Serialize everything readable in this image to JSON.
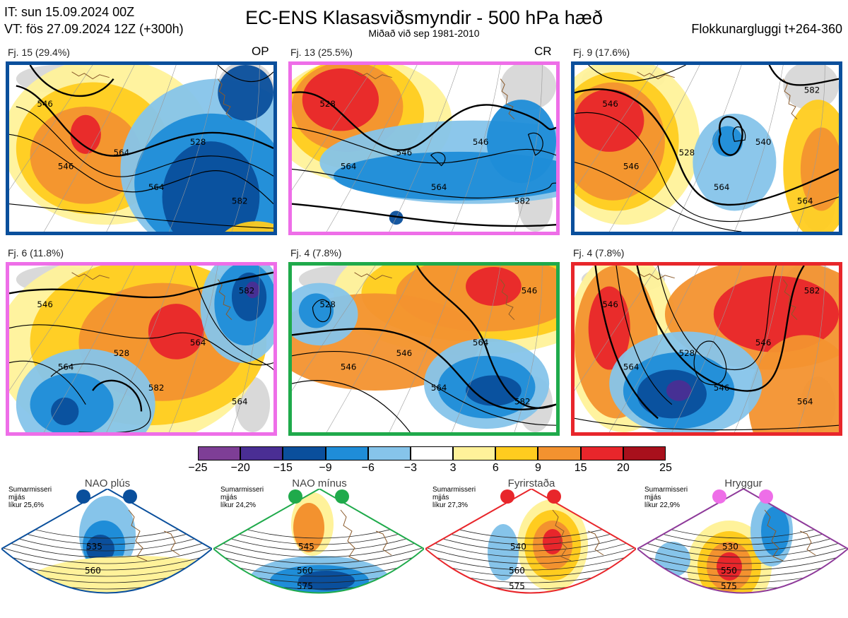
{
  "header": {
    "it_line": "IT: sun 15.09.2024 00Z",
    "vt_line": "VT: fös 27.09.2024 12Z  (+300h)",
    "title": "EC-ENS Klasasviðsmyndir - 500 hPa hæð",
    "subtitle": "Miðað við sep 1981-2010",
    "window": "Flokkunargluggi t+264-360"
  },
  "clusters": [
    {
      "label": "Fj. 15 (29.4%)",
      "tag": "OP",
      "border": "#0a4f9c",
      "contours": [
        "546",
        "564",
        "528",
        "546",
        "564",
        "582"
      ]
    },
    {
      "label": "Fj. 13 (25.5%)",
      "tag": "CR",
      "border": "#ee6ee8",
      "contours": [
        "528",
        "546",
        "546",
        "564",
        "564",
        "582"
      ]
    },
    {
      "label": "Fj. 9 (17.6%)",
      "tag": "",
      "border": "#0a4f9c",
      "contours": [
        "546",
        "528",
        "540",
        "546",
        "564",
        "564",
        "582"
      ]
    },
    {
      "label": "Fj. 6 (11.8%)",
      "tag": "",
      "border": "#ee6ee8",
      "contours": [
        "546",
        "528",
        "564",
        "564",
        "582",
        "564",
        "582"
      ]
    },
    {
      "label": "Fj. 4 (7.8%)",
      "tag": "",
      "border": "#1faa4b",
      "contours": [
        "528",
        "546",
        "564",
        "546",
        "564",
        "582",
        "546"
      ]
    },
    {
      "label": "Fj. 4 (7.8%)",
      "tag": "",
      "border": "#e8262b",
      "contours": [
        "546",
        "528",
        "546",
        "564",
        "546",
        "564",
        "582"
      ]
    }
  ],
  "colorbar": {
    "ticks": [
      "−25",
      "−20",
      "−15",
      "−9",
      "−6",
      "−3",
      "3",
      "6",
      "9",
      "15",
      "20",
      "25"
    ],
    "colors": [
      "#7e3e96",
      "#4a2e94",
      "#0a4f9c",
      "#1f8dd8",
      "#86c4ea",
      "#ffffff",
      "#fff29a",
      "#ffcc1f",
      "#f3922f",
      "#e8262b",
      "#a8101c"
    ]
  },
  "regimes": [
    {
      "name": "NAO plús",
      "season": "Sumarmisseri",
      "smooth": "mjjás",
      "prob": "líkur 25,6%",
      "color": "#0a4f9c",
      "contours": [
        "535",
        "560"
      ]
    },
    {
      "name": "NAO mínus",
      "season": "Sumarmisseri",
      "smooth": "mjjás",
      "prob": "líkur 24,2%",
      "color": "#1faa4b",
      "contours": [
        "545",
        "560",
        "575"
      ]
    },
    {
      "name": "Fyrirstaða",
      "season": "Sumarmisseri",
      "smooth": "mjjás",
      "prob": "líkur 27,3%",
      "color": "#e8262b",
      "contours": [
        "540",
        "560",
        "575"
      ]
    },
    {
      "name": "Hryggur",
      "season": "Sumarmisseri",
      "smooth": "mjjás",
      "prob": "líkur 22,9%",
      "color": "#8e3a9a",
      "contours": [
        "530",
        "550",
        "575"
      ]
    }
  ]
}
